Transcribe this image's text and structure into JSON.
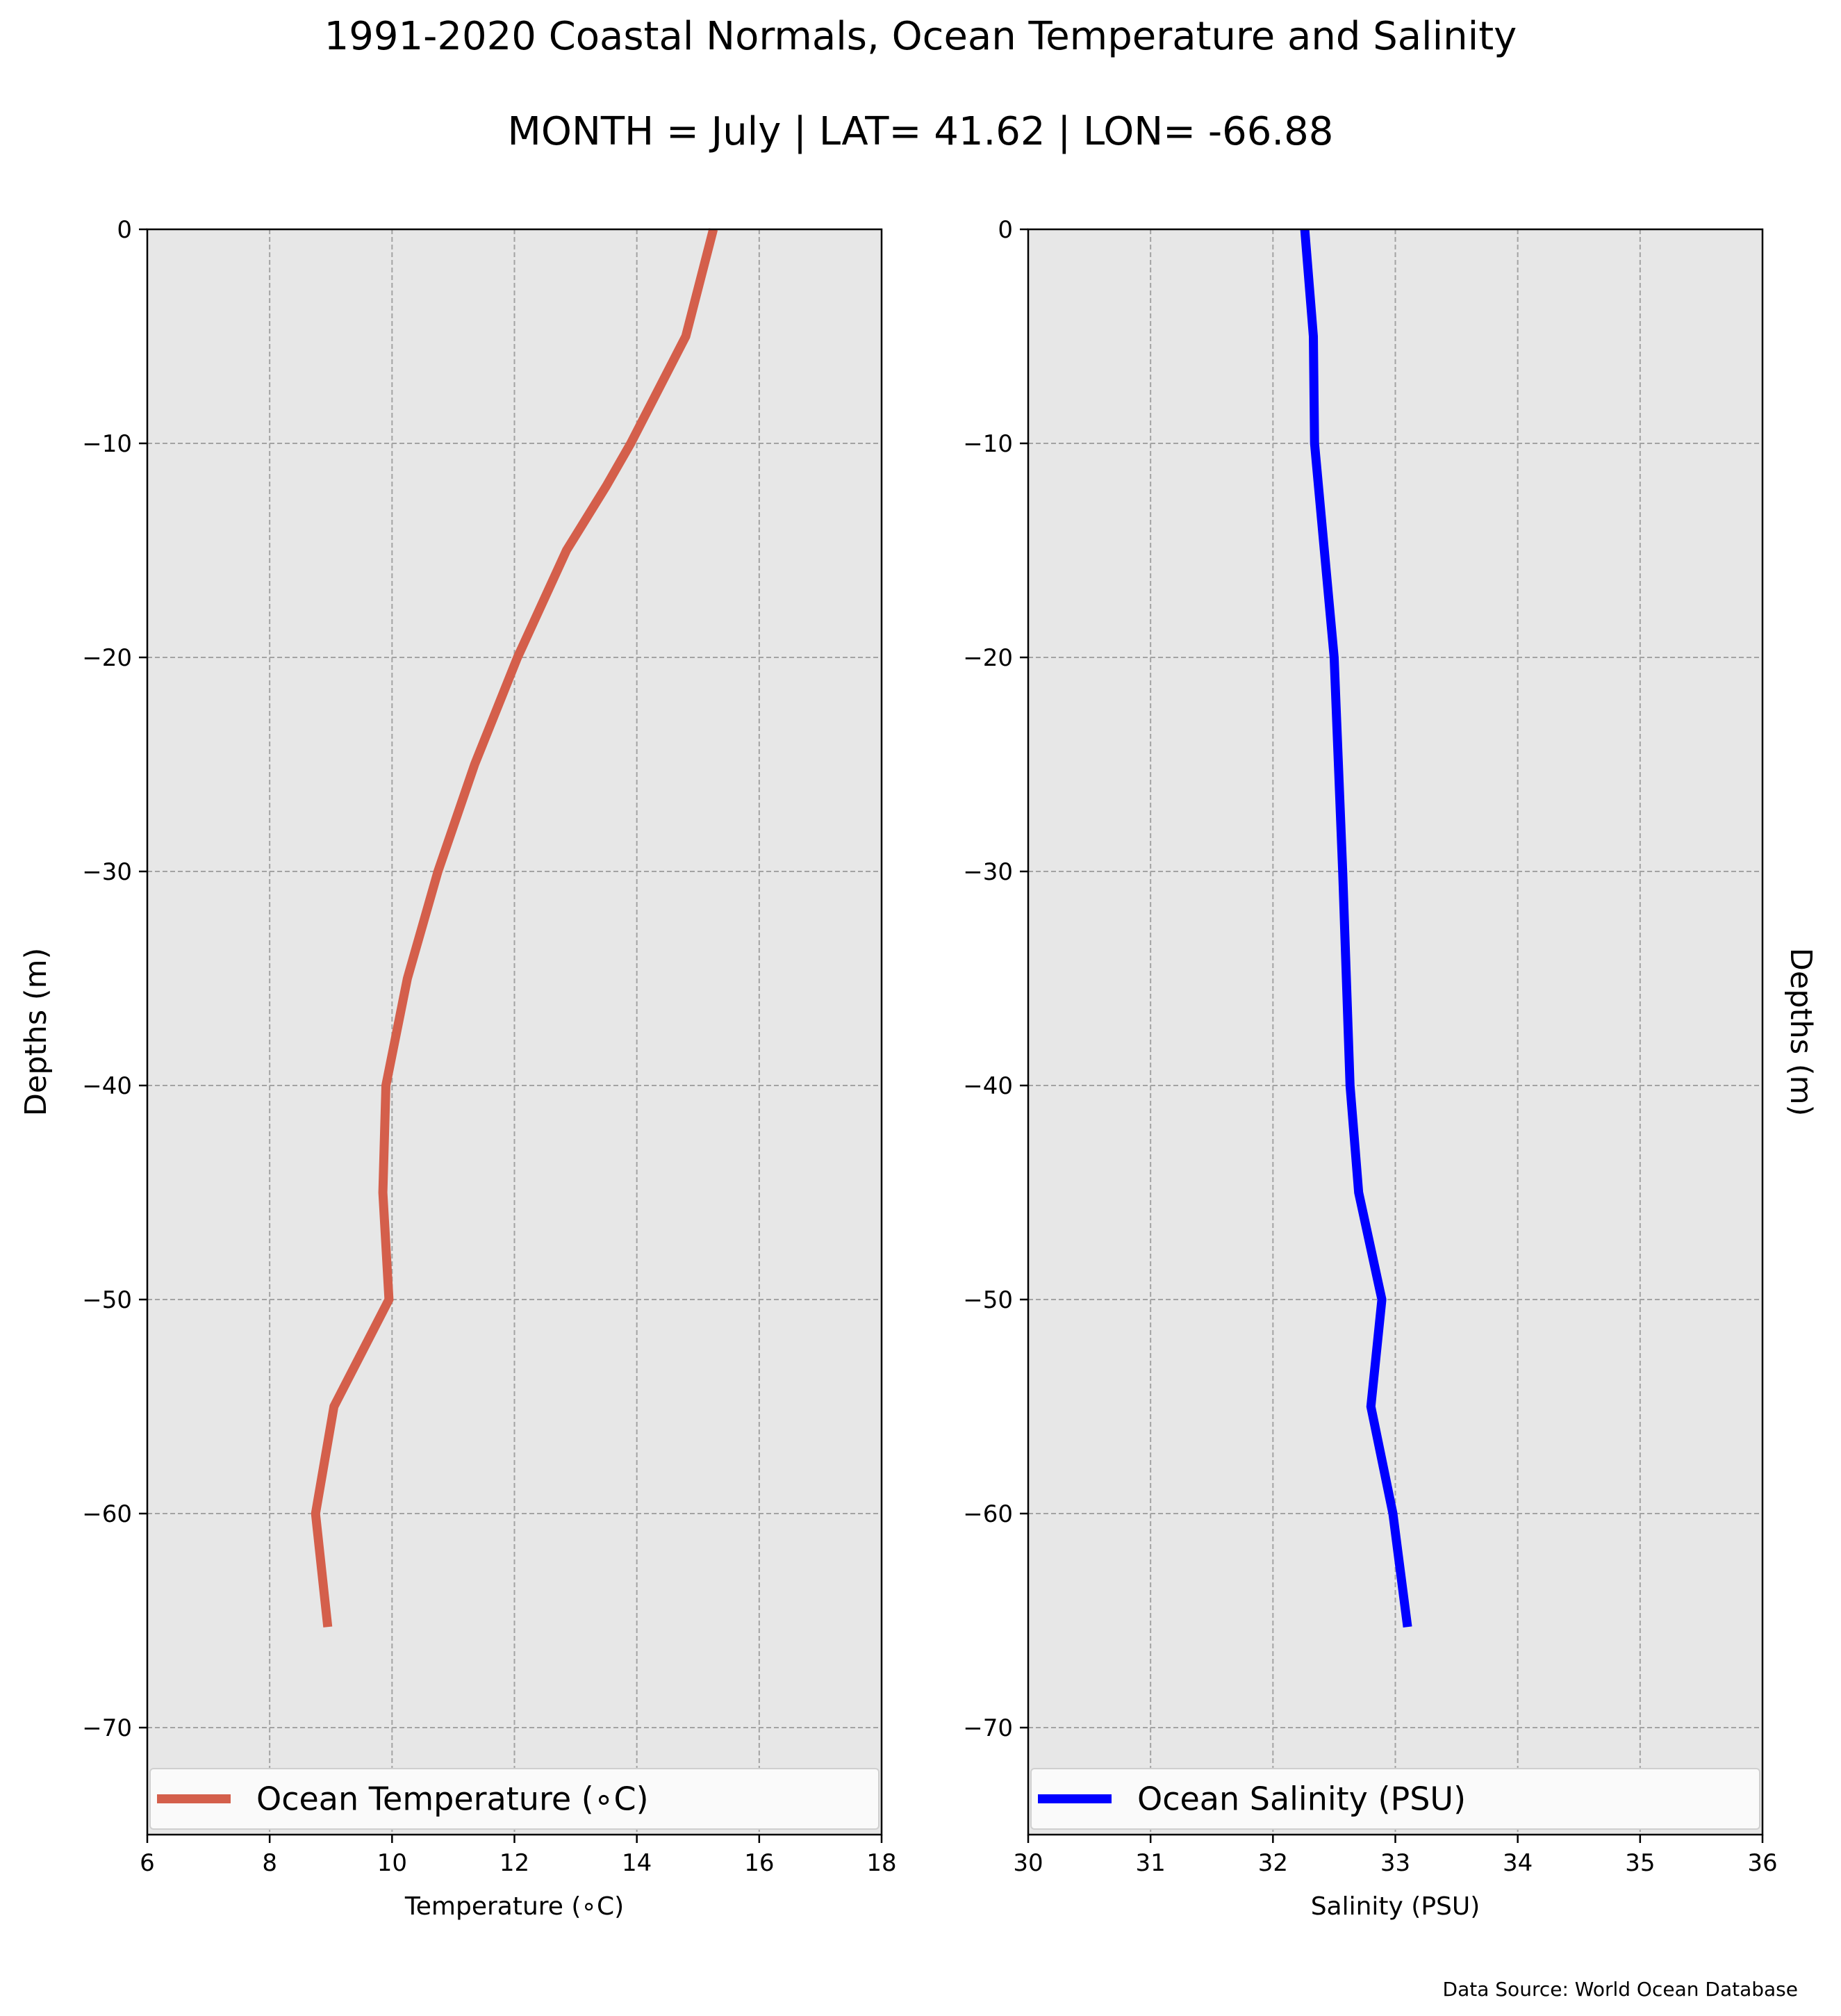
{
  "title": "1991-2020 Coastal Normals, Ocean Temperature and Salinity",
  "subtitle": "MONTH = July | LAT= 41.62 | LON= -66.88",
  "source_note": "Data Source: World Ocean Database",
  "chart_data": [
    {
      "type": "line",
      "title": "",
      "xlabel": "Temperature (∘C)",
      "ylabel": "Depths (m)",
      "ylabel_side": "left",
      "xlim": [
        6,
        18
      ],
      "ylim": [
        -75,
        0
      ],
      "xticks": [
        6,
        8,
        10,
        12,
        14,
        16,
        18
      ],
      "xtick_labels": [
        "6",
        "8",
        "10",
        "12",
        "14",
        "16",
        "18"
      ],
      "yticks": [
        0,
        -10,
        -20,
        -30,
        -40,
        -50,
        -60,
        -70
      ],
      "ytick_labels": [
        "0",
        "−10",
        "−20",
        "−30",
        "−40",
        "−50",
        "−60",
        "−70"
      ],
      "grid": true,
      "legend_position": "bottom",
      "series": [
        {
          "name": "Ocean Temperature (∘C)",
          "color": "#d45f4b",
          "x": [
            15.25,
            14.8,
            13.9,
            13.5,
            12.85,
            12.05,
            11.35,
            10.75,
            10.25,
            9.9,
            9.85,
            9.95,
            9.05,
            8.75,
            8.95
          ],
          "y": [
            0,
            -5,
            -10,
            -12,
            -15,
            -20,
            -25,
            -30,
            -35,
            -40,
            -45,
            -50,
            -55,
            -60,
            -65.3
          ]
        }
      ]
    },
    {
      "type": "line",
      "title": "",
      "xlabel": "Salinity (PSU)",
      "ylabel": "Depths (m)",
      "ylabel_side": "right",
      "xlim": [
        30,
        36
      ],
      "ylim": [
        -75,
        0
      ],
      "xticks": [
        30,
        31,
        32,
        33,
        34,
        35,
        36
      ],
      "xtick_labels": [
        "30",
        "31",
        "32",
        "33",
        "34",
        "35",
        "36"
      ],
      "yticks": [
        0,
        -10,
        -20,
        -30,
        -40,
        -50,
        -60,
        -70
      ],
      "ytick_labels": [
        "0",
        "−10",
        "−20",
        "−30",
        "−40",
        "−50",
        "−60",
        "−70"
      ],
      "grid": true,
      "legend_position": "bottom",
      "series": [
        {
          "name": "Ocean Salinity (PSU)",
          "color": "#0000ff",
          "x": [
            32.26,
            32.33,
            32.34,
            32.42,
            32.5,
            32.57,
            32.63,
            32.7,
            32.89,
            32.8,
            32.98,
            33.1
          ],
          "y": [
            0,
            -5,
            -10,
            -15,
            -20,
            -30,
            -40,
            -45,
            -50,
            -55,
            -60,
            -65.3
          ]
        }
      ]
    }
  ]
}
